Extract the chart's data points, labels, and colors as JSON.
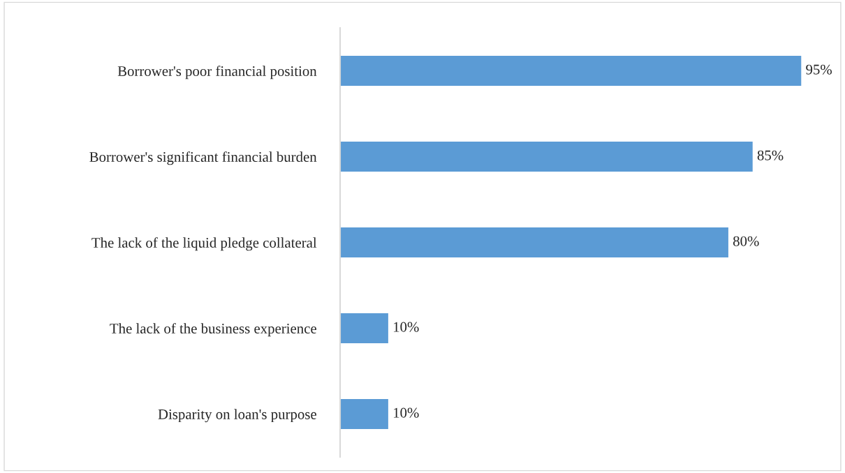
{
  "chart_data": {
    "type": "bar",
    "orientation": "horizontal",
    "categories": [
      "Borrower's poor financial position",
      "Borrower's significant financial burden",
      "The lack of the liquid pledge collateral",
      "The lack of the business experience",
      "Disparity on loan's purpose"
    ],
    "values": [
      95,
      85,
      80,
      10,
      10
    ],
    "value_labels": [
      "95%",
      "85%",
      "80%",
      "10%",
      "10%"
    ],
    "color": "#5b9bd5",
    "tick_labels": "y",
    "grid": false,
    "legend": false
  }
}
